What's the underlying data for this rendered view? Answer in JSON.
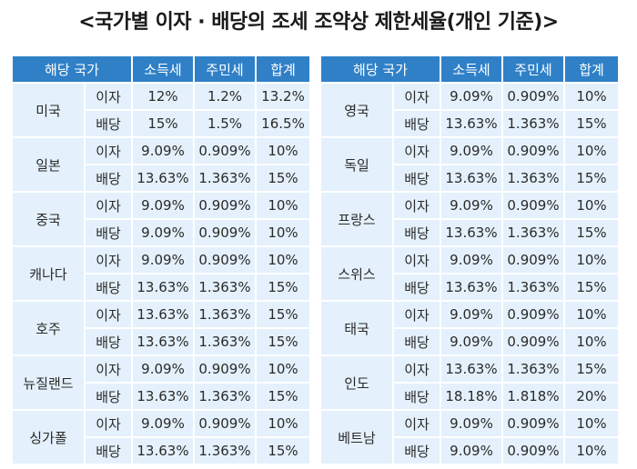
{
  "title": "<국가별 이자 · 배당의 조세 조약상 제한세율(개인 기준)>",
  "headers": {
    "country": "해당 국가",
    "income_tax": "소득세",
    "resident_tax": "주민세",
    "total": "합계"
  },
  "left": [
    {
      "country": "미국",
      "rows": [
        {
          "kind": "이자",
          "income_tax": "12%",
          "resident_tax": "1.2%",
          "total": "13.2%"
        },
        {
          "kind": "배당",
          "income_tax": "15%",
          "resident_tax": "1.5%",
          "total": "16.5%"
        }
      ]
    },
    {
      "country": "일본",
      "rows": [
        {
          "kind": "이자",
          "income_tax": "9.09%",
          "resident_tax": "0.909%",
          "total": "10%"
        },
        {
          "kind": "배당",
          "income_tax": "13.63%",
          "resident_tax": "1.363%",
          "total": "15%"
        }
      ]
    },
    {
      "country": "중국",
      "rows": [
        {
          "kind": "이자",
          "income_tax": "9.09%",
          "resident_tax": "0.909%",
          "total": "10%"
        },
        {
          "kind": "배당",
          "income_tax": "9.09%",
          "resident_tax": "0.909%",
          "total": "10%"
        }
      ]
    },
    {
      "country": "캐나다",
      "rows": [
        {
          "kind": "이자",
          "income_tax": "9.09%",
          "resident_tax": "0.909%",
          "total": "10%"
        },
        {
          "kind": "배당",
          "income_tax": "13.63%",
          "resident_tax": "1.363%",
          "total": "15%"
        }
      ]
    },
    {
      "country": "호주",
      "rows": [
        {
          "kind": "이자",
          "income_tax": "13.63%",
          "resident_tax": "1.363%",
          "total": "15%"
        },
        {
          "kind": "배당",
          "income_tax": "13.63%",
          "resident_tax": "1.363%",
          "total": "15%"
        }
      ]
    },
    {
      "country": "뉴질랜드",
      "rows": [
        {
          "kind": "이자",
          "income_tax": "9.09%",
          "resident_tax": "0.909%",
          "total": "10%"
        },
        {
          "kind": "배당",
          "income_tax": "13.63%",
          "resident_tax": "1.363%",
          "total": "15%"
        }
      ]
    },
    {
      "country": "싱가폴",
      "rows": [
        {
          "kind": "이자",
          "income_tax": "9.09%",
          "resident_tax": "0.909%",
          "total": "10%"
        },
        {
          "kind": "배당",
          "income_tax": "13.63%",
          "resident_tax": "1.363%",
          "total": "15%"
        }
      ]
    }
  ],
  "right": [
    {
      "country": "영국",
      "rows": [
        {
          "kind": "이자",
          "income_tax": "9.09%",
          "resident_tax": "0.909%",
          "total": "10%"
        },
        {
          "kind": "배당",
          "income_tax": "13.63%",
          "resident_tax": "1.363%",
          "total": "15%"
        }
      ]
    },
    {
      "country": "독일",
      "rows": [
        {
          "kind": "이자",
          "income_tax": "9.09%",
          "resident_tax": "0.909%",
          "total": "10%"
        },
        {
          "kind": "배당",
          "income_tax": "13.63%",
          "resident_tax": "1.363%",
          "total": "15%"
        }
      ]
    },
    {
      "country": "프랑스",
      "rows": [
        {
          "kind": "이자",
          "income_tax": "9.09%",
          "resident_tax": "0.909%",
          "total": "10%"
        },
        {
          "kind": "배당",
          "income_tax": "13.63%",
          "resident_tax": "1.363%",
          "total": "15%"
        }
      ]
    },
    {
      "country": "스위스",
      "rows": [
        {
          "kind": "이자",
          "income_tax": "9.09%",
          "resident_tax": "0.909%",
          "total": "10%"
        },
        {
          "kind": "배당",
          "income_tax": "13.63%",
          "resident_tax": "1.363%",
          "total": "15%"
        }
      ]
    },
    {
      "country": "태국",
      "rows": [
        {
          "kind": "이자",
          "income_tax": "9.09%",
          "resident_tax": "0.909%",
          "total": "10%"
        },
        {
          "kind": "배당",
          "income_tax": "9.09%",
          "resident_tax": "0.909%",
          "total": "10%"
        }
      ]
    },
    {
      "country": "인도",
      "rows": [
        {
          "kind": "이자",
          "income_tax": "13.63%",
          "resident_tax": "1.363%",
          "total": "15%"
        },
        {
          "kind": "배당",
          "income_tax": "18.18%",
          "resident_tax": "1.818%",
          "total": "20%"
        }
      ]
    },
    {
      "country": "베트남",
      "rows": [
        {
          "kind": "이자",
          "income_tax": "9.09%",
          "resident_tax": "0.909%",
          "total": "10%"
        },
        {
          "kind": "배당",
          "income_tax": "9.09%",
          "resident_tax": "0.909%",
          "total": "10%"
        }
      ]
    }
  ],
  "colors": {
    "header_bg": "#2f80c7",
    "cell_bg": "#e4f1fc",
    "header_text": "#ffffff"
  }
}
